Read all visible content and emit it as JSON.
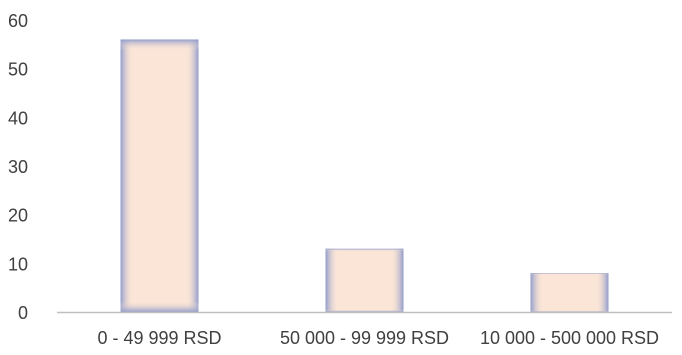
{
  "chart_data": {
    "type": "bar",
    "title": "",
    "xlabel": "",
    "ylabel": "",
    "categories": [
      "0 - 49 999 RSD",
      "50 000 - 99 999 RSD",
      "10 000 - 500 000 RSD"
    ],
    "values": [
      56,
      13,
      8
    ],
    "ylim": [
      0,
      60
    ],
    "yticks": [
      0,
      10,
      20,
      30,
      40,
      50,
      60
    ],
    "grid": false,
    "legend": "none",
    "colors": {
      "bar_fill": "#fbe5d6",
      "bar_edge": "#8f9bcb",
      "axis": "#bfbfbf",
      "text": "#404040"
    }
  }
}
